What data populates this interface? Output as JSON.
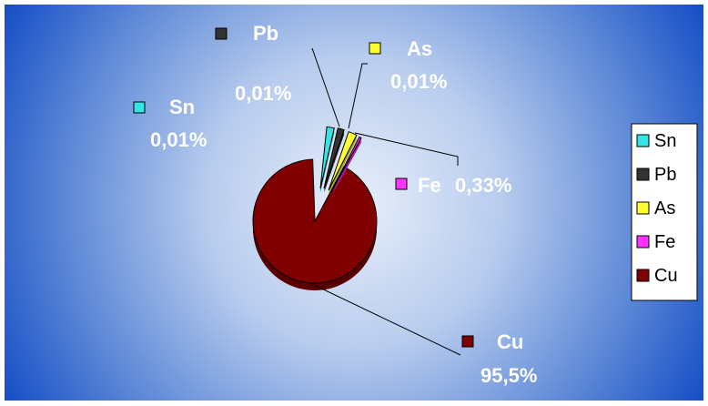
{
  "chart_data": {
    "type": "pie",
    "title": "",
    "legend_position": "right",
    "slices": [
      {
        "name": "Sn",
        "value": 0.01,
        "label_value": "0,01%",
        "color": "#33E6E6"
      },
      {
        "name": "Pb",
        "value": 0.01,
        "label_value": "0,01%",
        "color": "#333333"
      },
      {
        "name": "As",
        "value": 0.01,
        "label_value": "0,01%",
        "color": "#FFFF33"
      },
      {
        "name": "Fe",
        "value": 0.33,
        "label_value": "0,33%",
        "color": "#FF33FF"
      },
      {
        "name": "Cu",
        "value": 95.5,
        "label_value": "95,5%",
        "color": "#800000"
      }
    ],
    "legend": [
      "Sn",
      "Pb",
      "As",
      "Fe",
      "Cu"
    ]
  },
  "colors": {
    "background_center": "#E6EEFA",
    "background_edge": "#0040C0",
    "label_text": "#FFFFFF",
    "legend_background": "#FFFFFF"
  }
}
